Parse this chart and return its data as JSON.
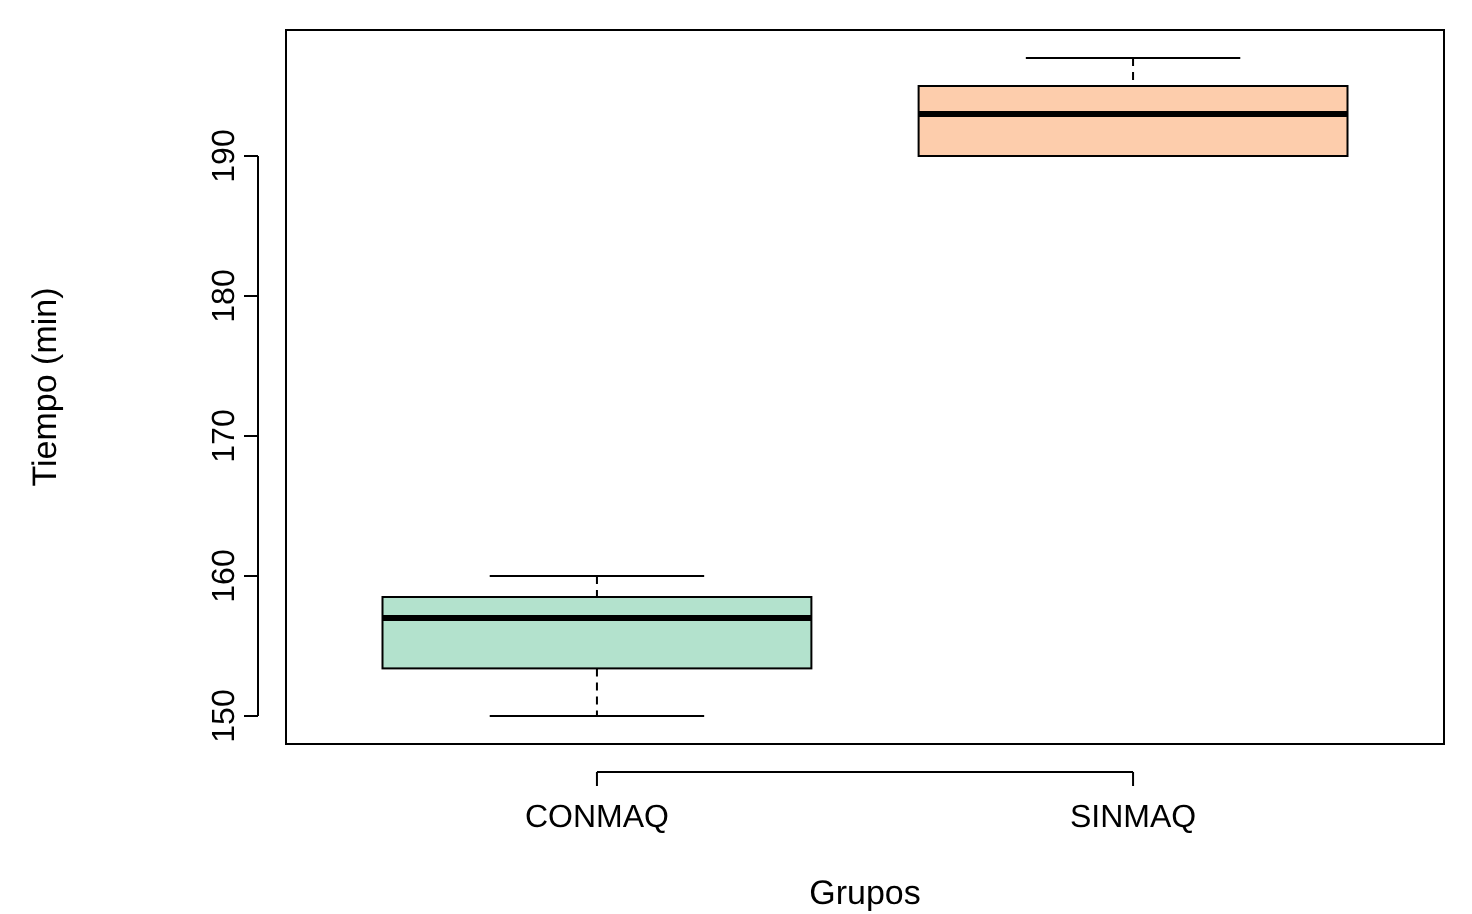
{
  "chart_data": {
    "type": "box",
    "xlabel": "Grupos",
    "ylabel": "Tiempo (min)",
    "categories": [
      "CONMAQ",
      "SINMAQ"
    ],
    "series": [
      {
        "colors": [
          "#b3e2cd",
          "#fdcdac"
        ],
        "boxes": [
          {
            "low": 150,
            "q1": 153.4,
            "median": 157,
            "q3": 158.5,
            "high": 160
          },
          {
            "low": 190,
            "q1": 190,
            "median": 193,
            "q3": 195,
            "high": 197
          }
        ]
      }
    ],
    "ylim": [
      148,
      199
    ],
    "yticks": [
      150,
      160,
      170,
      180,
      190
    ],
    "grid": false
  }
}
